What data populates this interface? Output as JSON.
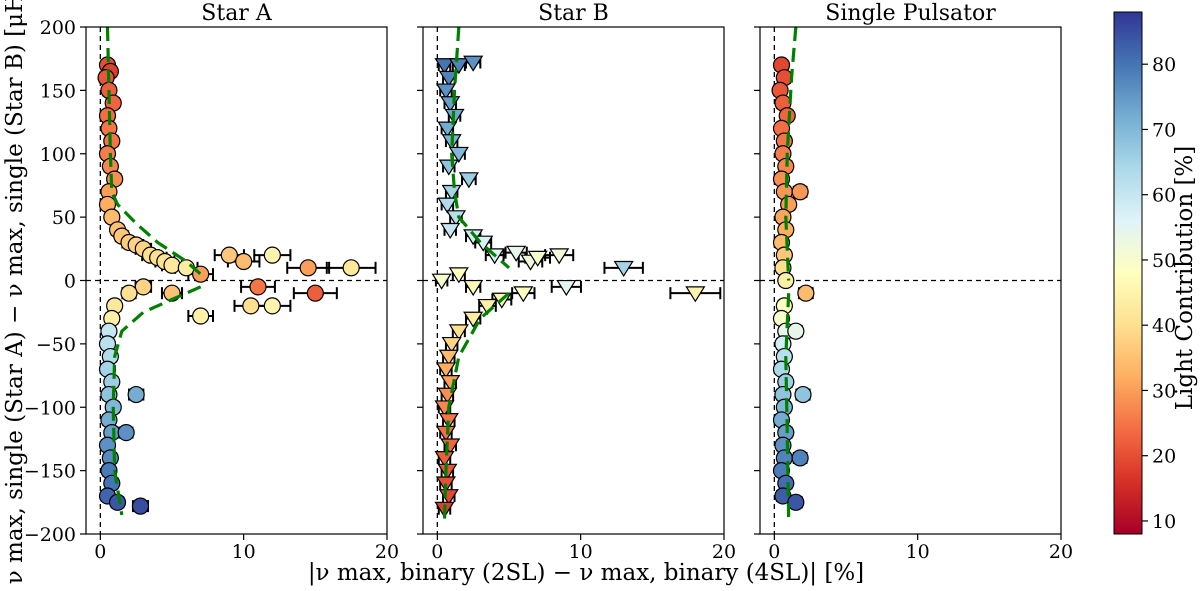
{
  "chart_data": {
    "type": "scatter",
    "ylabel": "ν max, single (Star A) − ν max, single (Star B) [μHz]",
    "xlabel": "|ν max, binary (2SL) − ν max, binary (4SL)| [%]",
    "ylim": [
      -200,
      200
    ],
    "xlim": [
      -1,
      20
    ],
    "y_ticks": [
      "−200",
      "−150",
      "−100",
      "−50",
      "0",
      "50",
      "100",
      "150",
      "200"
    ],
    "x_ticks": [
      "0",
      "10",
      "20"
    ],
    "panels": [
      {
        "title": "Star A",
        "marker": "circle",
        "points": [
          [
            0.5,
            170,
            20
          ],
          [
            0.7,
            165,
            18
          ],
          [
            0.4,
            160,
            21
          ],
          [
            0.6,
            150,
            22
          ],
          [
            0.9,
            140,
            23
          ],
          [
            0.5,
            130,
            24
          ],
          [
            0.6,
            120,
            25
          ],
          [
            0.8,
            110,
            25
          ],
          [
            0.5,
            100,
            26
          ],
          [
            0.7,
            90,
            27
          ],
          [
            1.0,
            80,
            28
          ],
          [
            0.6,
            70,
            30
          ],
          [
            0.5,
            60,
            32
          ],
          [
            0.8,
            50,
            34
          ],
          [
            1.2,
            40,
            35
          ],
          [
            1.5,
            35,
            36
          ],
          [
            2.0,
            30,
            37
          ],
          [
            2.5,
            28,
            38
          ],
          [
            3.0,
            25,
            38
          ],
          [
            3.5,
            20,
            40
          ],
          [
            4.0,
            18,
            40
          ],
          [
            4.5,
            15,
            41
          ],
          [
            5.0,
            12,
            42
          ],
          [
            6.0,
            10,
            43
          ],
          [
            7.0,
            5,
            30
          ],
          [
            9.0,
            20,
            36
          ],
          [
            10.0,
            15,
            34
          ],
          [
            12.0,
            20,
            45
          ],
          [
            14.5,
            10,
            30
          ],
          [
            15.0,
            -10,
            22
          ],
          [
            17.5,
            10,
            42
          ],
          [
            11.0,
            -5,
            25
          ],
          [
            12.0,
            -20,
            45
          ],
          [
            10.5,
            -20,
            40
          ],
          [
            7.0,
            -28,
            44
          ],
          [
            5.0,
            -10,
            35
          ],
          [
            3.0,
            -5,
            38
          ],
          [
            2.0,
            -10,
            40
          ],
          [
            1.0,
            -20,
            42
          ],
          [
            0.8,
            -30,
            44
          ],
          [
            0.6,
            -40,
            60
          ],
          [
            0.5,
            -50,
            62
          ],
          [
            0.7,
            -60,
            63
          ],
          [
            0.5,
            -70,
            65
          ],
          [
            0.8,
            -80,
            66
          ],
          [
            0.6,
            -90,
            68
          ],
          [
            0.9,
            -100,
            70
          ],
          [
            0.6,
            -110,
            72
          ],
          [
            0.8,
            -120,
            74
          ],
          [
            0.5,
            -130,
            76
          ],
          [
            0.7,
            -140,
            77
          ],
          [
            0.6,
            -150,
            79
          ],
          [
            0.8,
            -160,
            80
          ],
          [
            0.5,
            -170,
            82
          ],
          [
            1.2,
            -175,
            84
          ],
          [
            2.8,
            -178,
            85
          ],
          [
            2.5,
            -90,
            72
          ],
          [
            1.8,
            -120,
            76
          ]
        ],
        "trend_upper": [
          [
            0.5,
            200
          ],
          [
            0.6,
            150
          ],
          [
            0.7,
            100
          ],
          [
            0.8,
            70
          ],
          [
            1.2,
            60
          ],
          [
            2.5,
            45
          ],
          [
            4,
            30
          ],
          [
            6,
            15
          ],
          [
            7,
            5
          ]
        ],
        "trend_lower": [
          [
            7,
            -5
          ],
          [
            5,
            -15
          ],
          [
            3,
            -25
          ],
          [
            1.5,
            -40
          ],
          [
            1.0,
            -60
          ],
          [
            0.9,
            -100
          ],
          [
            1.0,
            -150
          ],
          [
            1.5,
            -185
          ]
        ]
      },
      {
        "title": "Star B",
        "marker": "triangle-down",
        "points": [
          [
            0.5,
            170,
            80
          ],
          [
            1.5,
            170,
            78
          ],
          [
            2.5,
            172,
            76
          ],
          [
            0.8,
            160,
            78
          ],
          [
            0.6,
            150,
            76
          ],
          [
            0.9,
            140,
            74
          ],
          [
            1.2,
            130,
            73
          ],
          [
            0.7,
            120,
            72
          ],
          [
            1.0,
            110,
            71
          ],
          [
            1.5,
            100,
            70
          ],
          [
            0.8,
            90,
            68
          ],
          [
            2.2,
            80,
            66
          ],
          [
            1.0,
            70,
            65
          ],
          [
            0.7,
            60,
            63
          ],
          [
            1.3,
            50,
            62
          ],
          [
            0.9,
            40,
            60
          ],
          [
            2.5,
            35,
            58
          ],
          [
            3.2,
            30,
            57
          ],
          [
            4.0,
            20,
            56
          ],
          [
            5.5,
            22,
            54
          ],
          [
            6.5,
            15,
            52
          ],
          [
            7.0,
            18,
            50
          ],
          [
            8.5,
            20,
            52
          ],
          [
            13.0,
            10,
            65
          ],
          [
            9.0,
            -5,
            55
          ],
          [
            18.0,
            -10,
            45
          ],
          [
            6.0,
            -10,
            48
          ],
          [
            4.5,
            -15,
            46
          ],
          [
            3.5,
            -20,
            44
          ],
          [
            2.5,
            -30,
            43
          ],
          [
            1.5,
            -40,
            40
          ],
          [
            1.0,
            -50,
            38
          ],
          [
            0.8,
            -60,
            34
          ],
          [
            0.6,
            -70,
            32
          ],
          [
            0.9,
            -80,
            30
          ],
          [
            0.7,
            -90,
            28
          ],
          [
            0.5,
            -100,
            27
          ],
          [
            0.8,
            -110,
            25
          ],
          [
            0.6,
            -120,
            24
          ],
          [
            0.9,
            -130,
            23
          ],
          [
            0.5,
            -140,
            22
          ],
          [
            0.7,
            -150,
            21
          ],
          [
            0.6,
            -160,
            20
          ],
          [
            0.8,
            -170,
            19
          ],
          [
            0.5,
            -180,
            18
          ],
          [
            0.3,
            0,
            50
          ],
          [
            1.5,
            5,
            48
          ],
          [
            2.5,
            -5,
            46
          ]
        ],
        "trend_upper": [
          [
            1.5,
            200
          ],
          [
            1.2,
            150
          ],
          [
            1.0,
            100
          ],
          [
            1.2,
            70
          ],
          [
            1.5,
            50
          ],
          [
            3,
            30
          ],
          [
            5,
            10
          ]
        ],
        "trend_lower": [
          [
            5,
            -10
          ],
          [
            3,
            -30
          ],
          [
            1.5,
            -60
          ],
          [
            0.8,
            -100
          ],
          [
            0.6,
            -150
          ],
          [
            0.5,
            -190
          ]
        ]
      },
      {
        "title": "Single Pulsator",
        "marker": "circle",
        "points": [
          [
            0.5,
            170,
            19
          ],
          [
            0.7,
            160,
            20
          ],
          [
            0.4,
            150,
            21
          ],
          [
            0.6,
            140,
            22
          ],
          [
            0.9,
            130,
            23
          ],
          [
            0.5,
            120,
            24
          ],
          [
            0.7,
            110,
            25
          ],
          [
            0.6,
            100,
            26
          ],
          [
            0.8,
            90,
            27
          ],
          [
            0.5,
            80,
            28
          ],
          [
            0.7,
            70,
            29
          ],
          [
            1.0,
            60,
            30
          ],
          [
            0.6,
            50,
            31
          ],
          [
            0.8,
            40,
            32
          ],
          [
            0.5,
            30,
            34
          ],
          [
            0.7,
            20,
            36
          ],
          [
            0.6,
            10,
            40
          ],
          [
            0.8,
            0,
            44
          ],
          [
            2.2,
            -10,
            34
          ],
          [
            0.7,
            -20,
            48
          ],
          [
            0.5,
            -30,
            50
          ],
          [
            0.8,
            -40,
            54
          ],
          [
            0.6,
            -50,
            58
          ],
          [
            0.7,
            -60,
            62
          ],
          [
            0.5,
            -70,
            64
          ],
          [
            0.8,
            -80,
            66
          ],
          [
            0.6,
            -90,
            68
          ],
          [
            0.7,
            -100,
            70
          ],
          [
            0.5,
            -110,
            72
          ],
          [
            0.8,
            -120,
            74
          ],
          [
            0.6,
            -130,
            76
          ],
          [
            0.7,
            -140,
            78
          ],
          [
            0.5,
            -150,
            79
          ],
          [
            0.8,
            -160,
            81
          ],
          [
            0.6,
            -170,
            83
          ],
          [
            1.5,
            -175,
            84
          ],
          [
            1.8,
            -140,
            78
          ],
          [
            2.0,
            -90,
            68
          ],
          [
            1.5,
            -40,
            54
          ],
          [
            1.8,
            70,
            29
          ]
        ],
        "trend_upper": [
          [
            1.5,
            200
          ],
          [
            1.2,
            160
          ],
          [
            0.9,
            100
          ],
          [
            0.8,
            50
          ],
          [
            1.0,
            0
          ]
        ],
        "trend_lower": [
          [
            1.0,
            -10
          ],
          [
            0.8,
            -60
          ],
          [
            0.9,
            -120
          ],
          [
            1.0,
            -190
          ]
        ]
      }
    ],
    "colorbar": {
      "label": "Light Contribution [%]",
      "range": [
        8,
        88
      ],
      "ticks": [
        "10",
        "20",
        "30",
        "40",
        "50",
        "60",
        "70",
        "80"
      ],
      "colormap": "RdYlBu"
    }
  },
  "colors": {
    "trend": "#008000",
    "errorbar": "#000000"
  }
}
